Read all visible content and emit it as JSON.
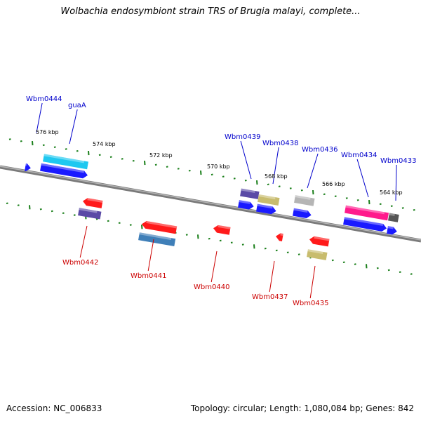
{
  "title": "Wolbachia endosymbiont strain TRS of Brugia malayi, complete...",
  "footer": {
    "accession": "Accession: NC_006833",
    "stats": "Topology: circular; Length: 1,080,084 bp; Genes: 842"
  },
  "colors": {
    "backbone": "#8c8c8c",
    "tick": "#1a7f1a",
    "forward_label": "#0000cc",
    "reverse_label": "#cc0000",
    "blue": "#1a1aff",
    "cyan": "#1ec8f0",
    "red": "#ff1a1a",
    "purple": "#5a4aa6",
    "steel": "#3f7fb8",
    "khaki": "#c8bc6e",
    "gray": "#b5b5b5",
    "magenta": "#ff1a8c",
    "dark": "#555555"
  },
  "scale_labels": [
    "576 kbp",
    "574 kbp",
    "572 kbp",
    "570 kbp",
    "568 kbp",
    "566 kbp",
    "564 kbp"
  ],
  "forward_genes": [
    {
      "name": "Wbm0444"
    },
    {
      "name": "guaA"
    },
    {
      "name": "Wbm0439"
    },
    {
      "name": "Wbm0438"
    },
    {
      "name": "Wbm0436"
    },
    {
      "name": "Wbm0434"
    },
    {
      "name": "Wbm0433"
    }
  ],
  "reverse_genes": [
    {
      "name": "Wbm0442"
    },
    {
      "name": "Wbm0441"
    },
    {
      "name": "Wbm0440"
    },
    {
      "name": "Wbm0437"
    },
    {
      "name": "Wbm0435"
    }
  ]
}
